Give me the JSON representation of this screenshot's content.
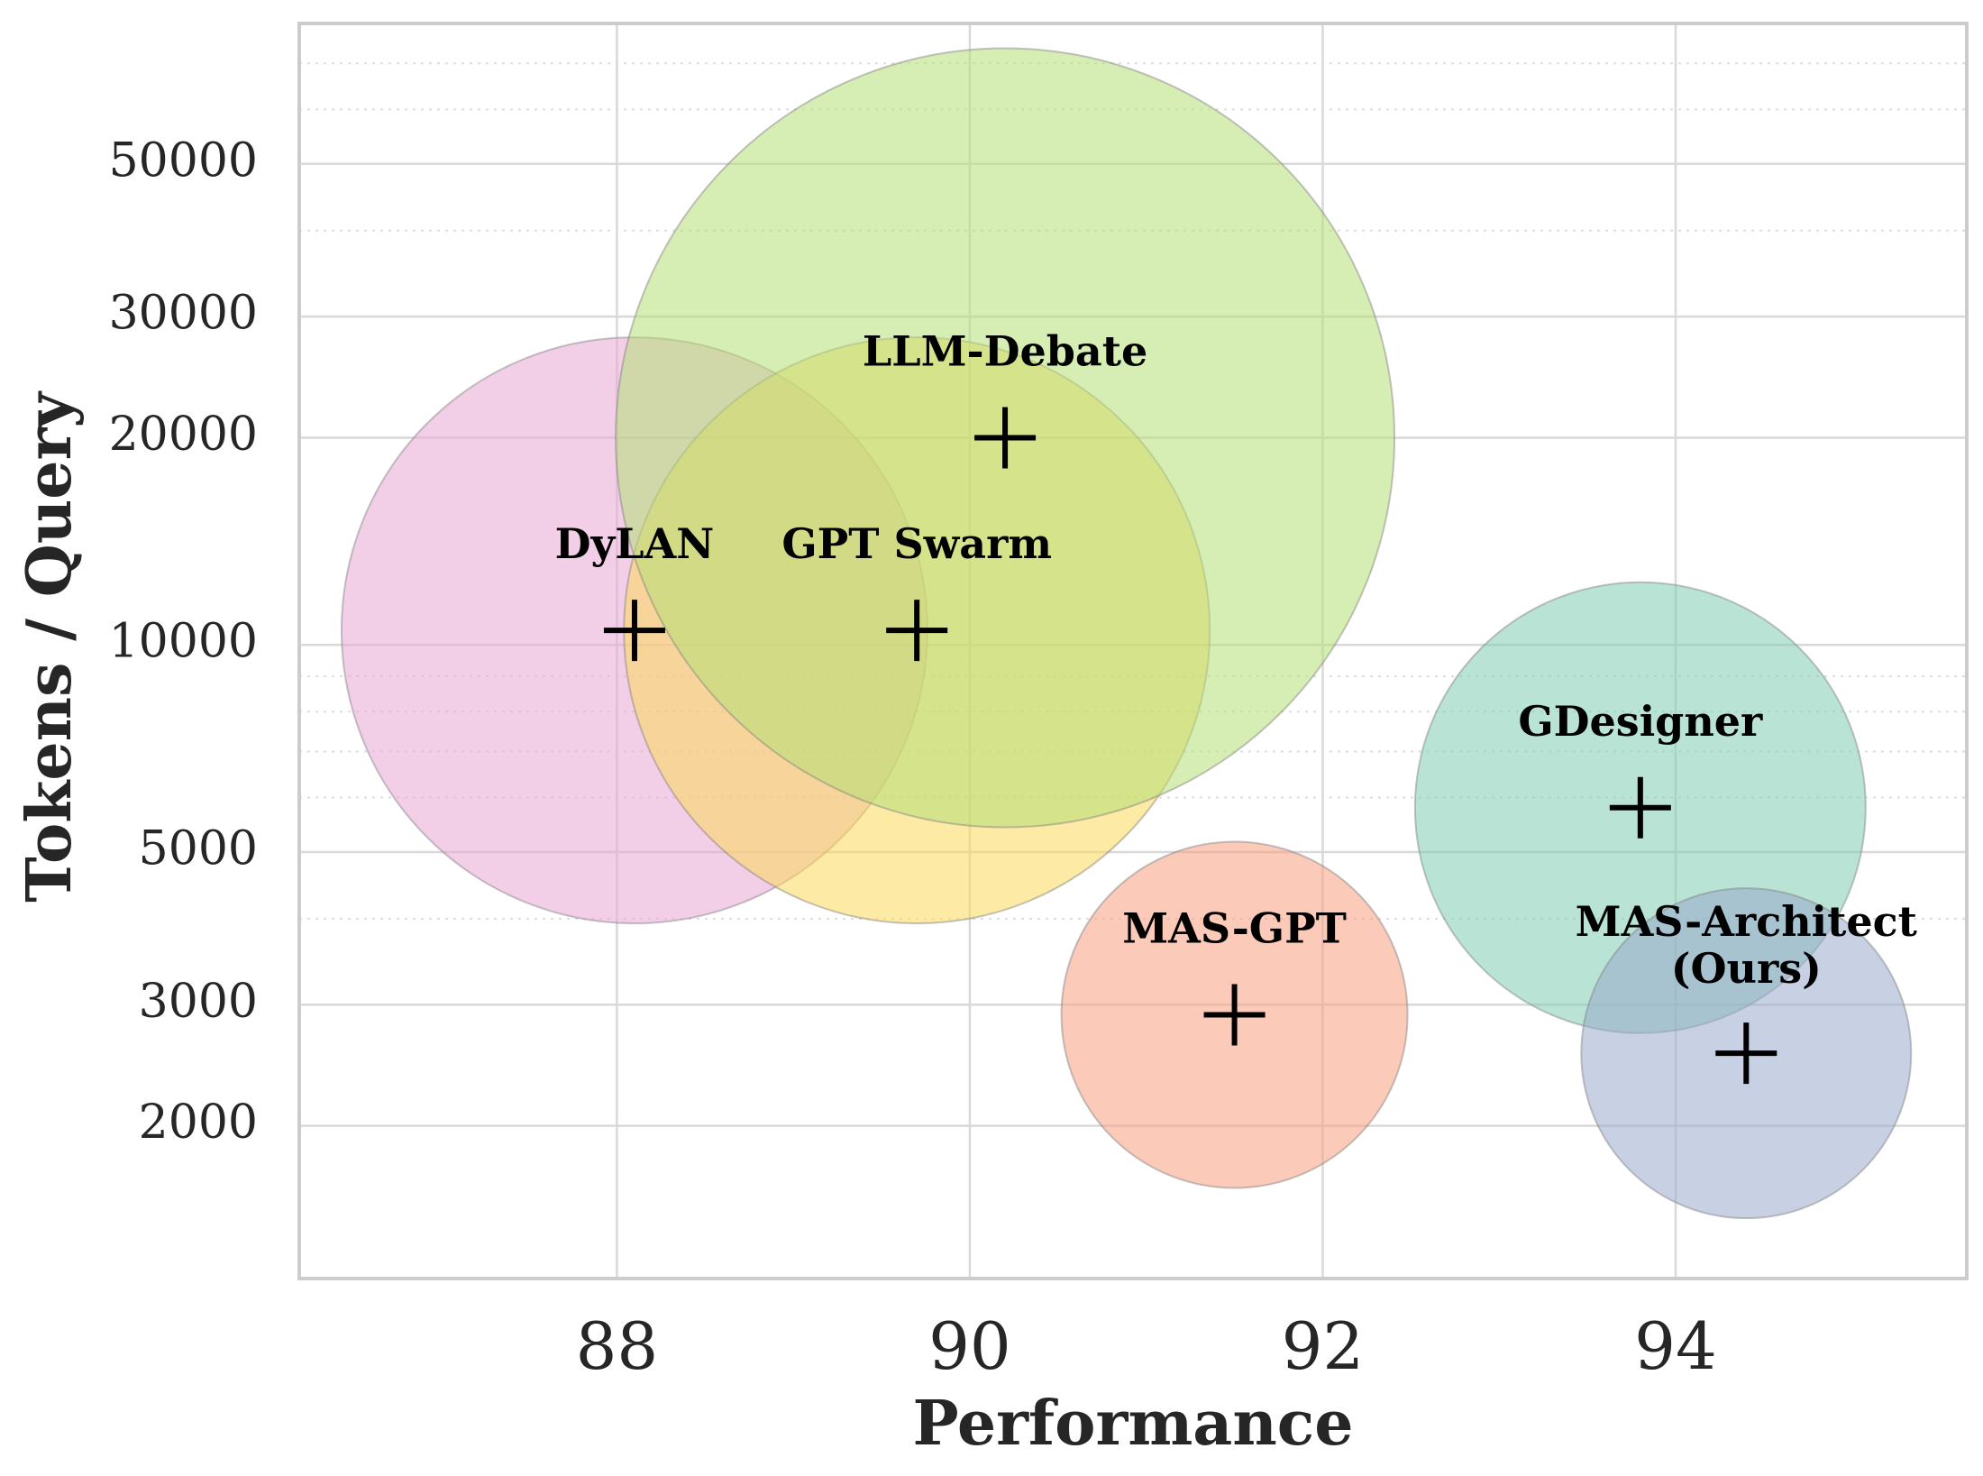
{
  "chart_data": {
    "type": "scatter",
    "title": "",
    "xlabel": "Performance",
    "ylabel": "Tokens / Query",
    "xlim": [
      86.2,
      95.65
    ],
    "ylim": [
      1200,
      80000
    ],
    "y_scale": "log",
    "x_ticks": [
      88,
      90,
      92,
      94
    ],
    "y_ticks": [
      2000,
      3000,
      5000,
      10000,
      20000,
      30000,
      50000
    ],
    "grid": true,
    "points": [
      {
        "label": "DyLAN",
        "x": 88.1,
        "y": 10500,
        "color": "#e7a6d4"
      },
      {
        "label": "GPT Swarm",
        "x": 89.7,
        "y": 10500,
        "color": "#fbd85a"
      },
      {
        "label": "LLM-Debate",
        "x": 90.2,
        "y": 20000,
        "color": "#b4de75"
      },
      {
        "label": "MAS-GPT",
        "x": 91.5,
        "y": 2900,
        "color": "#f79e7f"
      },
      {
        "label": "GDesigner",
        "x": 93.8,
        "y": 5800,
        "color": "#7fccb1"
      },
      {
        "label": "MAS-Architect\n(Ours)",
        "x": 94.4,
        "y": 2550,
        "color": "#9ba9cc"
      }
    ]
  }
}
